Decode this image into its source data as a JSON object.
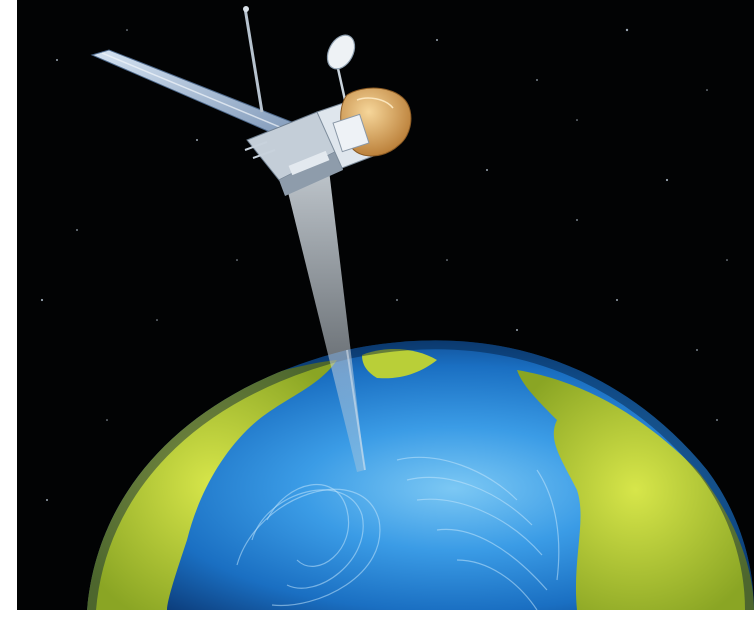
{
  "scene": {
    "subject": "",
    "colors": {
      "space": "#020304",
      "ocean_light": "#5fb6ef",
      "ocean_mid": "#1a7ad0",
      "ocean_dark": "#0a3f86",
      "land_light": "#c8dc3a",
      "land_dark": "#6e8a1c",
      "panel": "#9fb9d8",
      "gold_foil": "#d8a25a",
      "beam": "#c6d2dc"
    }
  }
}
